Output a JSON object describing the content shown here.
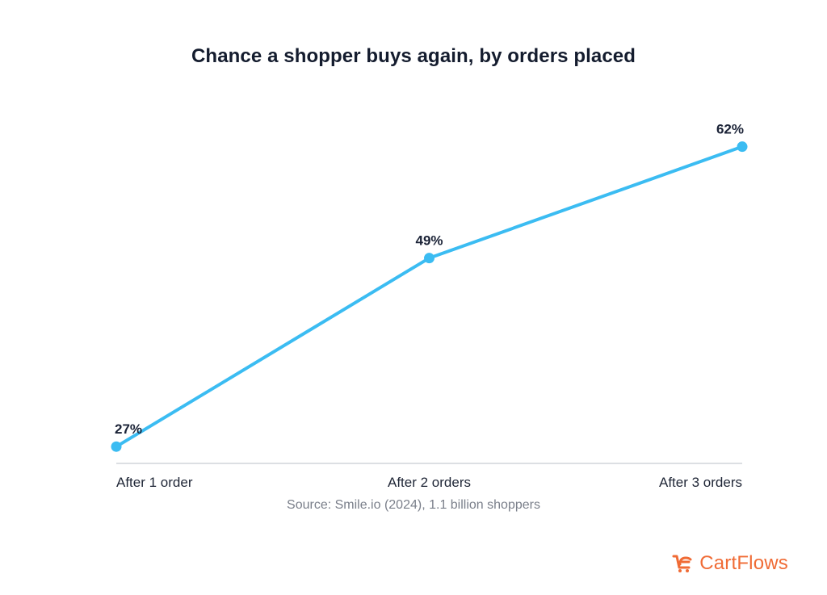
{
  "brand": {
    "name": "CartFlows",
    "icon": "cartflows-logo-icon",
    "color": "#f06b35"
  },
  "source_note": "Source: Smile.io (2024), 1.1 billion shoppers",
  "colors": {
    "line": "#3bbcf2",
    "axis": "#c8ccd2",
    "text": "#1a2236"
  },
  "chart_data": {
    "type": "line",
    "title": "Chance a shopper buys again, by orders placed",
    "xlabel": "",
    "ylabel": "",
    "categories": [
      "After 1 order",
      "After 2 orders",
      "After 3 orders"
    ],
    "series": [
      {
        "values": [
          27,
          49,
          62
        ],
        "data_labels": [
          "27%",
          "49%",
          "62%"
        ]
      }
    ],
    "unit": "%",
    "grid": false,
    "legend": "none"
  }
}
